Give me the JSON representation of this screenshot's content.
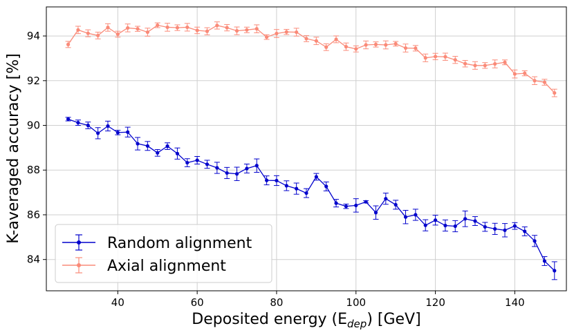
{
  "chart_data": {
    "type": "line",
    "title": "",
    "xlabel": "Deposited energy (E",
    "xlabel_sub": "dep",
    "xlabel_suffix": ") [GeV]",
    "ylabel": "K-averaged accuracy [%]",
    "xlim": [
      22,
      153
    ],
    "ylim": [
      82.6,
      95.3
    ],
    "xticks": [
      40,
      60,
      80,
      100,
      120,
      140
    ],
    "yticks": [
      84,
      86,
      88,
      90,
      92,
      94
    ],
    "grid": true,
    "legend_position": "bottom-left",
    "x": [
      27.5,
      30,
      32.5,
      35,
      37.5,
      40,
      42.5,
      45,
      47.5,
      50,
      52.5,
      55,
      57.5,
      60,
      62.5,
      65,
      67.5,
      70,
      72.5,
      75,
      77.5,
      80,
      82.5,
      85,
      87.5,
      90,
      92.5,
      95,
      97.5,
      100,
      102.5,
      105,
      107.5,
      110,
      112.5,
      115,
      117.5,
      120,
      122.5,
      125,
      127.5,
      130,
      132.5,
      135,
      137.5,
      140,
      142.5,
      145,
      147.5,
      150
    ],
    "series": [
      {
        "name": "Random alignment",
        "color": "#0000cc",
        "values": [
          90.28,
          90.12,
          90.0,
          89.65,
          89.97,
          89.68,
          89.7,
          89.18,
          89.08,
          88.77,
          89.07,
          88.74,
          88.33,
          88.44,
          88.26,
          88.1,
          87.87,
          87.83,
          88.07,
          88.2,
          87.54,
          87.53,
          87.3,
          87.17,
          86.97,
          87.7,
          87.27,
          86.52,
          86.38,
          86.42,
          86.58,
          86.1,
          86.72,
          86.45,
          85.9,
          86.0,
          85.53,
          85.76,
          85.52,
          85.49,
          85.82,
          85.72,
          85.46,
          85.37,
          85.31,
          85.5,
          85.26,
          84.83,
          83.93,
          83.5
        ],
        "errors": [
          0.08,
          0.12,
          0.15,
          0.25,
          0.22,
          0.1,
          0.22,
          0.28,
          0.2,
          0.15,
          0.15,
          0.25,
          0.18,
          0.17,
          0.18,
          0.25,
          0.25,
          0.3,
          0.2,
          0.3,
          0.2,
          0.22,
          0.22,
          0.25,
          0.2,
          0.15,
          0.2,
          0.17,
          0.1,
          0.3,
          0.05,
          0.3,
          0.25,
          0.2,
          0.3,
          0.25,
          0.25,
          0.22,
          0.25,
          0.25,
          0.35,
          0.2,
          0.2,
          0.25,
          0.3,
          0.15,
          0.2,
          0.25,
          0.2,
          0.4
        ]
      },
      {
        "name": "Axial alignment",
        "color": "#fa8a78",
        "values": [
          93.62,
          94.27,
          94.12,
          94.02,
          94.38,
          94.08,
          94.36,
          94.32,
          94.17,
          94.48,
          94.39,
          94.37,
          94.39,
          94.25,
          94.21,
          94.47,
          94.37,
          94.23,
          94.27,
          94.32,
          93.95,
          94.11,
          94.18,
          94.17,
          93.88,
          93.78,
          93.5,
          93.85,
          93.52,
          93.42,
          93.6,
          93.62,
          93.6,
          93.65,
          93.46,
          93.45,
          93.02,
          93.08,
          93.07,
          92.93,
          92.76,
          92.68,
          92.68,
          92.75,
          92.82,
          92.3,
          92.33,
          92.0,
          91.93,
          91.45
        ]
      }
    ]
  },
  "legend": {
    "random_label": "Random alignment",
    "axial_label": "Axial alignment"
  }
}
